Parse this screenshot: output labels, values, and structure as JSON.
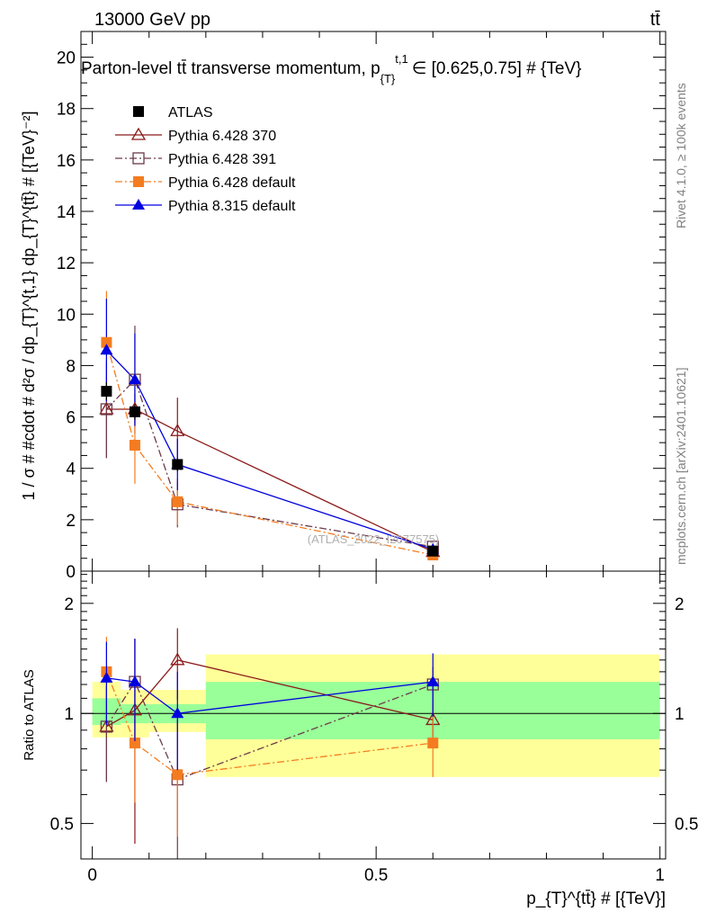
{
  "header": {
    "energy_label": "13000 GeV pp",
    "process_label": "tt̄",
    "plot_title": "Parton-level tt̄ transverse momentum, p",
    "plot_title_sub": "{T}",
    "plot_title_sup": "t,1",
    "plot_title_tail": "∈ [0.625,0.75] # {TeV}"
  },
  "side_labels": {
    "rivet": "Rivet 4.1.0, ≥ 100k events",
    "mcplots": "mcplots.cern.ch [arXiv:2401.10621]"
  },
  "watermark": "(ATLAS_2022_I2077575)",
  "axes": {
    "top_ylabel": "1 / σ # #cdot # d²σ / dp_{T}^{t,1} dp_{T}^{tt̄} # [{TeV}⁻²]",
    "bottom_ylabel": "Ratio to ATLAS",
    "xlabel": "p_{T}^{tt̄} # [{TeV}]",
    "x_ticks": [
      "0",
      "0.5",
      "1"
    ],
    "top_y_ticks": [
      "0",
      "2",
      "4",
      "6",
      "8",
      "10",
      "12",
      "14",
      "16",
      "18",
      "20"
    ],
    "ratio_y_ticks": [
      "0.5",
      "1",
      "2"
    ]
  },
  "legend": [
    {
      "name": "ATLAS",
      "color": "#000000"
    },
    {
      "name": "Pythia 6.428 370",
      "color": "#8b1a1a"
    },
    {
      "name": "Pythia 6.428 391",
      "color": "#6b3a4a"
    },
    {
      "name": "Pythia 6.428 default",
      "color": "#f47c20"
    },
    {
      "name": "Pythia 8.315 default",
      "color": "#0000e0"
    }
  ],
  "chart_data": [
    {
      "type": "line",
      "title": "Parton-level tt̄ transverse momentum, p_{T}^{t,1} ∈ [0.625,0.75] # {TeV}",
      "xlabel": "p_{T}^{tt̄} # [{TeV}]",
      "ylabel": "1 / σ # #cdot # d²σ / dp_{T}^{t,1} dp_{T}^{tt̄} # [{TeV}⁻²]",
      "xlim": [
        -0.02,
        1.01
      ],
      "ylim": [
        0,
        21
      ],
      "bins": [
        [
          0,
          0.05
        ],
        [
          0.05,
          0.1
        ],
        [
          0.1,
          0.2
        ],
        [
          0.2,
          1.0
        ]
      ],
      "data": {
        "name": "ATLAS",
        "x": [
          0.025,
          0.075,
          0.15,
          0.6
        ],
        "y": [
          7.0,
          6.2,
          4.15,
          0.78
        ],
        "err": [
          0.35,
          0.3,
          0.25,
          0.05
        ]
      },
      "series": [
        {
          "name": "Pythia 6.428 370",
          "style": "solid",
          "marker": "open-triangle",
          "color": "#8b1a1a",
          "x": [
            0.025,
            0.075,
            0.15,
            0.6
          ],
          "y": [
            6.3,
            6.3,
            5.45,
            0.75
          ],
          "err": [
            1.9,
            0.6,
            1.3,
            0.08
          ]
        },
        {
          "name": "Pythia 6.428 391",
          "style": "dashdot",
          "marker": "open-square",
          "color": "#6b3a4a",
          "x": [
            0.025,
            0.075,
            0.15,
            0.6
          ],
          "y": [
            6.3,
            7.45,
            2.6,
            0.95
          ],
          "err": [
            1.9,
            2.1,
            0.9,
            0.1
          ]
        },
        {
          "name": "Pythia 6.428 default",
          "style": "dashdot",
          "marker": "filled-square",
          "color": "#f47c20",
          "x": [
            0.025,
            0.075,
            0.15,
            0.6
          ],
          "y": [
            8.9,
            4.9,
            2.7,
            0.63
          ],
          "err": [
            2.0,
            1.5,
            0.9,
            0.1
          ]
        },
        {
          "name": "Pythia 8.315 default",
          "style": "solid",
          "marker": "filled-triangle",
          "color": "#0000e0",
          "x": [
            0.025,
            0.075,
            0.15,
            0.6
          ],
          "y": [
            8.6,
            7.45,
            4.15,
            0.85
          ],
          "err": [
            2.0,
            1.8,
            1.0,
            0.1
          ]
        }
      ]
    },
    {
      "type": "line",
      "title": "Ratio to ATLAS",
      "ylabel": "Ratio to ATLAS",
      "xlim": [
        -0.02,
        1.01
      ],
      "ylim": [
        0.4,
        2.45
      ],
      "ylog": true,
      "bands": [
        {
          "x": [
            0,
            0.05
          ],
          "inner": [
            0.93,
            1.1
          ],
          "outer": [
            0.86,
            1.22
          ]
        },
        {
          "x": [
            0.05,
            0.1
          ],
          "inner": [
            0.94,
            1.06
          ],
          "outer": [
            0.86,
            1.16
          ]
        },
        {
          "x": [
            0.1,
            0.2
          ],
          "inner": [
            0.94,
            1.06
          ],
          "outer": [
            0.89,
            1.16
          ]
        },
        {
          "x": [
            0.2,
            1.0
          ],
          "inner": [
            0.85,
            1.22
          ],
          "outer": [
            0.67,
            1.45
          ]
        }
      ],
      "series": [
        {
          "name": "Pythia 6.428 370",
          "x": [
            0.025,
            0.075,
            0.15,
            0.6
          ],
          "y": [
            0.92,
            1.02,
            1.4,
            0.96
          ],
          "err": [
            0.27,
            0.58,
            0.31,
            0.1
          ]
        },
        {
          "name": "Pythia 6.428 391",
          "x": [
            0.025,
            0.075,
            0.15,
            0.6
          ],
          "y": [
            0.92,
            1.22,
            0.66,
            1.2
          ],
          "err": [
            0.27,
            0.38,
            0.3,
            0.14
          ]
        },
        {
          "name": "Pythia 6.428 default",
          "x": [
            0.025,
            0.075,
            0.15,
            0.6
          ],
          "y": [
            1.3,
            0.83,
            0.68,
            0.83
          ],
          "err": [
            0.32,
            0.26,
            0.22,
            0.16
          ]
        },
        {
          "name": "Pythia 8.315 default",
          "x": [
            0.025,
            0.075,
            0.15,
            0.6
          ],
          "y": [
            1.25,
            1.22,
            1.0,
            1.22
          ],
          "err": [
            0.32,
            0.38,
            0.3,
            0.24
          ]
        }
      ]
    }
  ]
}
